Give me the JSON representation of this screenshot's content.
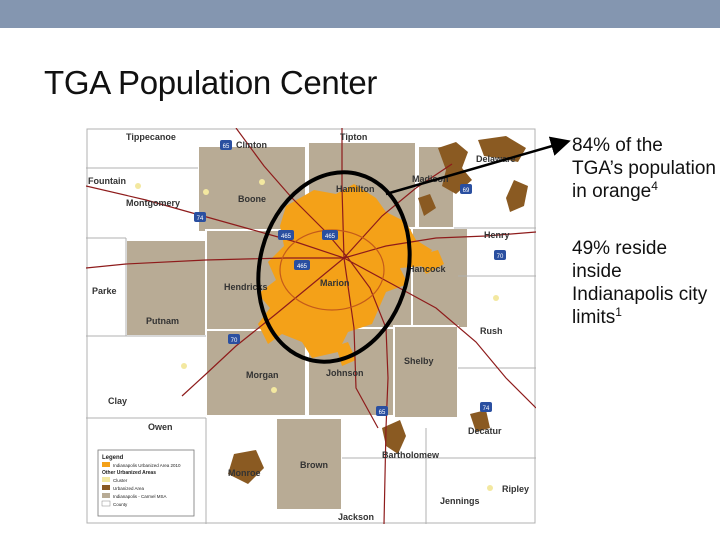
{
  "slide": {
    "title": "TGA Population Center"
  },
  "map": {
    "counties": [
      "Tippecanoe",
      "Clinton",
      "Tipton",
      "Delaware",
      "Fountain",
      "Montgomery",
      "Boone",
      "Hamilton",
      "Madison",
      "Henry",
      "Parke",
      "Putnam",
      "Hendricks",
      "Marion",
      "Hancock",
      "Rush",
      "Clay",
      "Owen",
      "Morgan",
      "Johnson",
      "Shelby",
      "Decatur",
      "Monroe",
      "Brown",
      "Bartholomew",
      "Jennings",
      "Ripley",
      "Jackson"
    ],
    "highway_shields": [
      "65",
      "69",
      "74",
      "465",
      "465",
      "465",
      "70",
      "70",
      "65",
      "74"
    ],
    "legend": {
      "title": "Legend",
      "items": [
        "Indianapolis Urbanized Area 2010",
        "Other Urbanized Areas",
        "Cluster",
        "Urbanized Area",
        "Indianapolis - Carmel MSA",
        "County"
      ]
    },
    "colors": {
      "orange": "#f4a118",
      "brown": "#8a5a22",
      "msa": "#b8ab95",
      "outside": "#ffffff"
    }
  },
  "bullets": [
    {
      "text": "84% of the TGA’s population in orange",
      "sup": "4"
    },
    {
      "text": "49% reside inside Indianapolis city limits",
      "sup": "1"
    }
  ]
}
